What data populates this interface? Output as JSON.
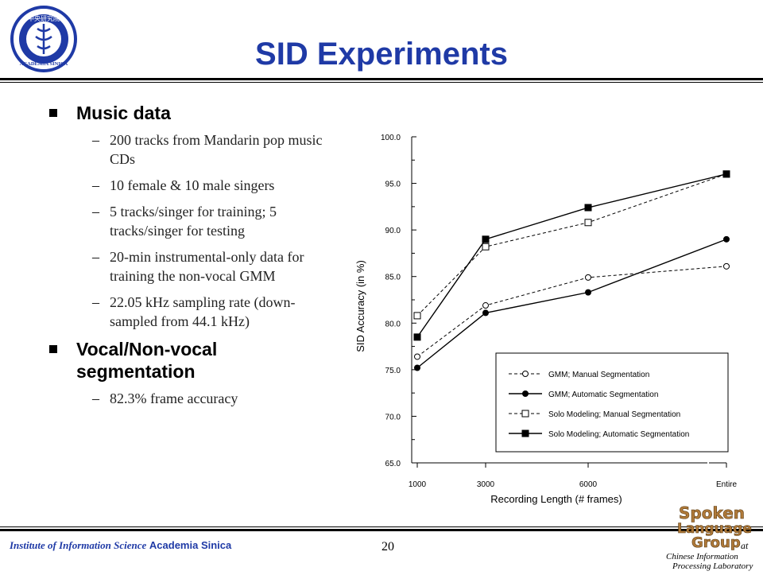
{
  "slide": {
    "title": "SID Experiments",
    "page_number": "20",
    "footer": {
      "institute": "Institute of Information Science",
      "academia": "Academia Sinica"
    },
    "logo_right": {
      "line1": "Spoken",
      "line2": "Language",
      "line3": "Group",
      "at": "at",
      "lab1": "Chinese Information",
      "lab2": "Processing Laboratory"
    },
    "logo_left": {
      "text": "ACADEMIA SINICA",
      "chinese": "中央研究院"
    },
    "colors": {
      "title": "#1f3aa6",
      "footer": "#1f3aa6"
    }
  },
  "bullets": [
    {
      "label": "Music data",
      "items": [
        "200 tracks from Mandarin pop music CDs",
        "10 female & 10 male singers",
        "5 tracks/singer for training; 5 tracks/singer for testing",
        "20-min instrumental-only data for training the non-vocal GMM",
        "22.05 kHz sampling rate (down-sampled from 44.1 kHz)"
      ]
    },
    {
      "label": "Vocal/Non-vocal segmentation",
      "items": [
        "82.3% frame accuracy"
      ]
    }
  ],
  "chart_data": {
    "type": "line",
    "title": "",
    "xlabel": "Recording Length (# frames)",
    "ylabel": "SID  Accuracy (in %)",
    "categories": [
      "1000",
      "3000",
      "6000",
      "Entire"
    ],
    "y_ticks": [
      "65.0",
      "70.0",
      "75.0",
      "80.0",
      "85.0",
      "90.0",
      "95.0",
      "100.0"
    ],
    "ylim": [
      65,
      100
    ],
    "grid": false,
    "legend_position": "bottom-right",
    "series": [
      {
        "name": "GMM; Manual Segmentation",
        "values": [
          76.4,
          81.9,
          84.9,
          86.1
        ],
        "marker": "circle-open",
        "dash": true
      },
      {
        "name": "GMM; Automatic Segmentation",
        "values": [
          75.2,
          81.1,
          83.3,
          89.0
        ],
        "marker": "circle-filled",
        "dash": false
      },
      {
        "name": "Solo Modeling; Manual Segmentation",
        "values": [
          80.8,
          88.2,
          90.8,
          96.0
        ],
        "marker": "square-open",
        "dash": true
      },
      {
        "name": "Solo Modeling; Automatic Segmentation",
        "values": [
          78.5,
          89.0,
          92.4,
          96.0
        ],
        "marker": "square-filled",
        "dash": false
      }
    ]
  }
}
